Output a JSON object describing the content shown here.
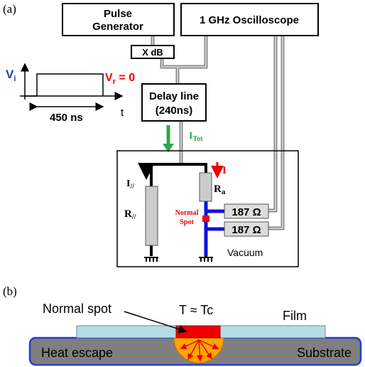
{
  "panel_a": {
    "label": "(a)",
    "pulse_generator": [
      "Pulse",
      "Generator"
    ],
    "oscilloscope": "1 GHz Oscilloscope",
    "attenuator": "X dB",
    "delay_line": [
      "Delay line",
      "(240ns)"
    ],
    "vi": {
      "symbol": "V",
      "sub": "i"
    },
    "vr": {
      "symbol": "V",
      "sub": "r",
      "rest": " = 0"
    },
    "pulse_width": "450 ns",
    "time_axis": "t",
    "i_tot": {
      "symbol": "I",
      "sub": "Tot"
    },
    "i_par": {
      "symbol": "I",
      "sub": "//"
    },
    "r_par": {
      "symbol": "R",
      "sub": "//"
    },
    "i": "I",
    "r_a": {
      "symbol": "R",
      "sub": "a"
    },
    "normal_spot": [
      "Normal",
      "Spot"
    ],
    "resistors": [
      "187 Ω",
      "187 Ω"
    ],
    "vacuum": "Vacuum"
  },
  "panel_b": {
    "label": "(b)",
    "normal_spot": "Normal spot",
    "temperature": "T ≈ Tc",
    "film": "Film",
    "heat_escape": "Heat escape",
    "substrate": "Substrate"
  }
}
